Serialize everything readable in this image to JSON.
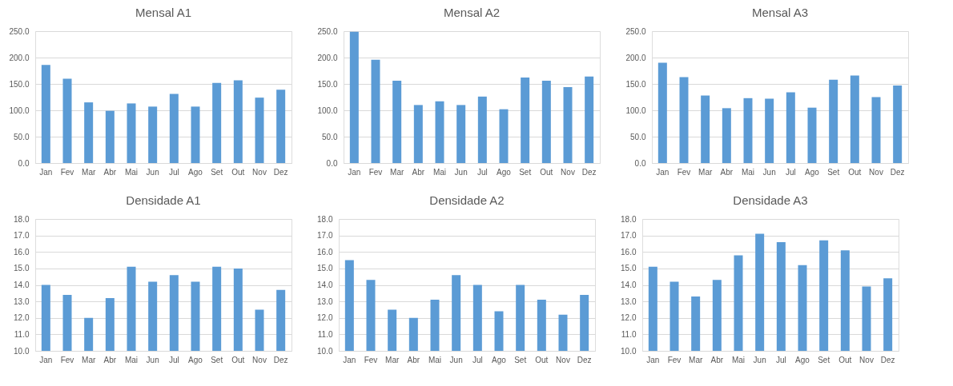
{
  "chart_data": [
    {
      "type": "bar",
      "title": "Mensal A1",
      "categories": [
        "Jan",
        "Fev",
        "Mar",
        "Abr",
        "Mai",
        "Jun",
        "Jul",
        "Ago",
        "Set",
        "Out",
        "Nov",
        "Dez"
      ],
      "values": [
        186,
        160,
        115,
        99,
        113,
        107,
        131,
        107,
        152,
        157,
        124,
        139
      ],
      "color": "#5b9bd5",
      "ylim": [
        0,
        250
      ],
      "yticks": [
        {
          "value": 0,
          "label": "0.0"
        },
        {
          "value": 50,
          "label": "50.0"
        },
        {
          "value": 100,
          "label": "100.0"
        },
        {
          "value": 150,
          "label": "150.0"
        },
        {
          "value": 200,
          "label": "200.0"
        },
        {
          "value": 250,
          "label": "250.0"
        }
      ],
      "grid": "y",
      "legend": false
    },
    {
      "type": "bar",
      "title": "Mensal A2",
      "categories": [
        "Jan",
        "Fev",
        "Mar",
        "Abr",
        "Mai",
        "Jun",
        "Jul",
        "Ago",
        "Set",
        "Out",
        "Nov",
        "Dez"
      ],
      "values": [
        249,
        196,
        156,
        110,
        117,
        110,
        126,
        102,
        162,
        156,
        144,
        164
      ],
      "color": "#5b9bd5",
      "ylim": [
        0,
        250
      ],
      "yticks": [
        {
          "value": 0,
          "label": "0.0"
        },
        {
          "value": 50,
          "label": "50.0"
        },
        {
          "value": 100,
          "label": "100.0"
        },
        {
          "value": 150,
          "label": "150.0"
        },
        {
          "value": 200,
          "label": "200.0"
        },
        {
          "value": 250,
          "label": "250.0"
        }
      ],
      "grid": "y",
      "legend": false
    },
    {
      "type": "bar",
      "title": "Mensal A3",
      "categories": [
        "Jan",
        "Fev",
        "Mar",
        "Abr",
        "Mai",
        "Jun",
        "Jul",
        "Ago",
        "Set",
        "Out",
        "Nov",
        "Dez"
      ],
      "values": [
        190,
        163,
        128,
        104,
        123,
        122,
        134,
        105,
        158,
        166,
        125,
        147
      ],
      "color": "#5b9bd5",
      "ylim": [
        0,
        250
      ],
      "yticks": [
        {
          "value": 0,
          "label": "0.0"
        },
        {
          "value": 50,
          "label": "50.0"
        },
        {
          "value": 100,
          "label": "100.0"
        },
        {
          "value": 150,
          "label": "150.0"
        },
        {
          "value": 200,
          "label": "200.0"
        },
        {
          "value": 250,
          "label": "250.0"
        }
      ],
      "grid": "y",
      "legend": false
    },
    {
      "type": "bar",
      "title": "Densidade A1",
      "categories": [
        "Jan",
        "Fev",
        "Mar",
        "Abr",
        "Mai",
        "Jun",
        "Jul",
        "Ago",
        "Set",
        "Out",
        "Nov",
        "Dez"
      ],
      "values": [
        14.0,
        13.4,
        12.0,
        13.2,
        15.1,
        14.2,
        14.6,
        14.2,
        15.1,
        15.0,
        12.5,
        13.7
      ],
      "color": "#5b9bd5",
      "ylim": [
        10,
        18
      ],
      "yticks": [
        {
          "value": 10,
          "label": "10.0"
        },
        {
          "value": 11,
          "label": "11.0"
        },
        {
          "value": 12,
          "label": "12.0"
        },
        {
          "value": 13,
          "label": "13.0"
        },
        {
          "value": 14,
          "label": "14.0"
        },
        {
          "value": 15,
          "label": "15.0"
        },
        {
          "value": 16,
          "label": "16.0"
        },
        {
          "value": 17,
          "label": "17.0"
        },
        {
          "value": 18,
          "label": "18.0"
        }
      ],
      "grid": "y",
      "legend": false
    },
    {
      "type": "bar",
      "title": "Densidade A2",
      "categories": [
        "Jan",
        "Fev",
        "Mar",
        "Abr",
        "Mai",
        "Jun",
        "Jul",
        "Ago",
        "Set",
        "Out",
        "Nov",
        "Dez"
      ],
      "values": [
        15.5,
        14.3,
        12.5,
        12.0,
        13.1,
        14.6,
        14.0,
        12.4,
        14.0,
        13.1,
        12.2,
        13.4
      ],
      "color": "#5b9bd5",
      "ylim": [
        10,
        18
      ],
      "yticks": [
        {
          "value": 10,
          "label": "10.0"
        },
        {
          "value": 11,
          "label": "11.0"
        },
        {
          "value": 12,
          "label": "12.0"
        },
        {
          "value": 13,
          "label": "13.0"
        },
        {
          "value": 14,
          "label": "14.0"
        },
        {
          "value": 15,
          "label": "15.0"
        },
        {
          "value": 16,
          "label": "16.0"
        },
        {
          "value": 17,
          "label": "17.0"
        },
        {
          "value": 18,
          "label": "18.0"
        }
      ],
      "grid": "y",
      "legend": false
    },
    {
      "type": "bar",
      "title": "Densidade A3",
      "categories": [
        "Jan",
        "Fev",
        "Mar",
        "Abr",
        "Mai",
        "Jun",
        "Jul",
        "Ago",
        "Set",
        "Out",
        "Nov",
        "Dez"
      ],
      "values": [
        15.1,
        14.2,
        13.3,
        14.3,
        15.8,
        17.1,
        16.6,
        15.2,
        16.7,
        16.1,
        13.9,
        14.4
      ],
      "color": "#5b9bd5",
      "ylim": [
        10,
        18
      ],
      "yticks": [
        {
          "value": 10,
          "label": "10.0"
        },
        {
          "value": 11,
          "label": "11.0"
        },
        {
          "value": 12,
          "label": "12.0"
        },
        {
          "value": 13,
          "label": "13.0"
        },
        {
          "value": 14,
          "label": "14.0"
        },
        {
          "value": 15,
          "label": "15.0"
        },
        {
          "value": 16,
          "label": "16.0"
        },
        {
          "value": 17,
          "label": "17.0"
        },
        {
          "value": 18,
          "label": "18.0"
        }
      ],
      "grid": "y",
      "legend": false
    }
  ]
}
